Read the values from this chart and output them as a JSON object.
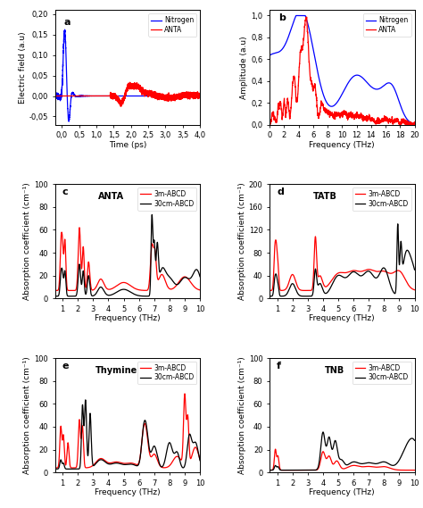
{
  "panel_a": {
    "label": "a",
    "ylabel": "Electric field (a.u)",
    "xlabel": "Time (ps)",
    "xlim": [
      -0.2,
      4.0
    ],
    "ylim": [
      -0.07,
      0.21
    ],
    "yticks": [
      -0.05,
      0.0,
      0.05,
      0.1,
      0.15,
      0.2
    ],
    "ytick_labels": [
      "-0,05",
      "0,00",
      "0,05",
      "0,10",
      "0,15",
      "0,20"
    ],
    "xticks": [
      0.0,
      0.5,
      1.0,
      1.5,
      2.0,
      2.5,
      3.0,
      3.5,
      4.0
    ],
    "xtick_labels": [
      "0,0",
      "0,5",
      "1,0",
      "1,5",
      "2,0",
      "2,5",
      "3,0",
      "3,5",
      "4,0"
    ],
    "legend": [
      "Nitrogen",
      "ANTA"
    ],
    "colors": [
      "blue",
      "red"
    ]
  },
  "panel_b": {
    "label": "b",
    "ylabel": "Amplitude (a.u)",
    "xlabel": "Frequency (THz)",
    "xlim": [
      0,
      20
    ],
    "ylim": [
      0.0,
      1.05
    ],
    "yticks": [
      0.0,
      0.2,
      0.4,
      0.6,
      0.8,
      1.0
    ],
    "ytick_labels": [
      "0,0",
      "0,2",
      "0,4",
      "0,6",
      "0,8",
      "1,0"
    ],
    "xticks": [
      0,
      2,
      4,
      6,
      8,
      10,
      12,
      14,
      16,
      18,
      20
    ],
    "legend": [
      "Nitrogen",
      "ANTA"
    ],
    "colors": [
      "blue",
      "red"
    ]
  },
  "panel_c": {
    "label": "c",
    "title": "ANTA",
    "ylabel": "Absorption coefficient (cm⁻¹)",
    "xlabel": "Frequency (THz)",
    "xlim": [
      0.5,
      10
    ],
    "ylim": [
      0,
      100
    ],
    "yticks": [
      0,
      20,
      40,
      60,
      80,
      100
    ],
    "xticks": [
      1,
      2,
      3,
      4,
      5,
      6,
      7,
      8,
      9,
      10
    ],
    "legend": [
      "3m-ABCD",
      "30cm-ABCD"
    ],
    "colors": [
      "red",
      "black"
    ]
  },
  "panel_d": {
    "label": "d",
    "title": "TATB",
    "ylabel": "Absorption coefficient (cm⁻¹)",
    "xlabel": "Frequency (THz)",
    "xlim": [
      0.5,
      10
    ],
    "ylim": [
      0,
      200
    ],
    "yticks": [
      0,
      40,
      80,
      120,
      160,
      200
    ],
    "xticks": [
      1,
      2,
      3,
      4,
      5,
      6,
      7,
      8,
      9,
      10
    ],
    "legend": [
      "3m-ABCD",
      "30cm-ABCD"
    ],
    "colors": [
      "red",
      "black"
    ]
  },
  "panel_e": {
    "label": "e",
    "title": "Thymine",
    "ylabel": "Absorption coefficient (cm⁻¹)",
    "xlabel": "Frequency (THz)",
    "xlim": [
      0.5,
      10
    ],
    "ylim": [
      0,
      100
    ],
    "yticks": [
      0,
      20,
      40,
      60,
      80,
      100
    ],
    "xticks": [
      1,
      2,
      3,
      4,
      5,
      6,
      7,
      8,
      9,
      10
    ],
    "legend": [
      "3m-ABCD",
      "30cm-ABCD"
    ],
    "colors": [
      "red",
      "black"
    ]
  },
  "panel_f": {
    "label": "f",
    "title": "TNB",
    "ylabel": "Absorption coefficient (cm⁻¹)",
    "xlabel": "Frequency (THz)",
    "xlim": [
      0.5,
      10
    ],
    "ylim": [
      0,
      100
    ],
    "yticks": [
      0,
      20,
      40,
      60,
      80,
      100
    ],
    "xticks": [
      1,
      2,
      3,
      4,
      5,
      6,
      7,
      8,
      9,
      10
    ],
    "legend": [
      "3m-ABCD",
      "30cm-ABCD"
    ],
    "colors": [
      "red",
      "black"
    ]
  },
  "bg_color": "#ffffff"
}
